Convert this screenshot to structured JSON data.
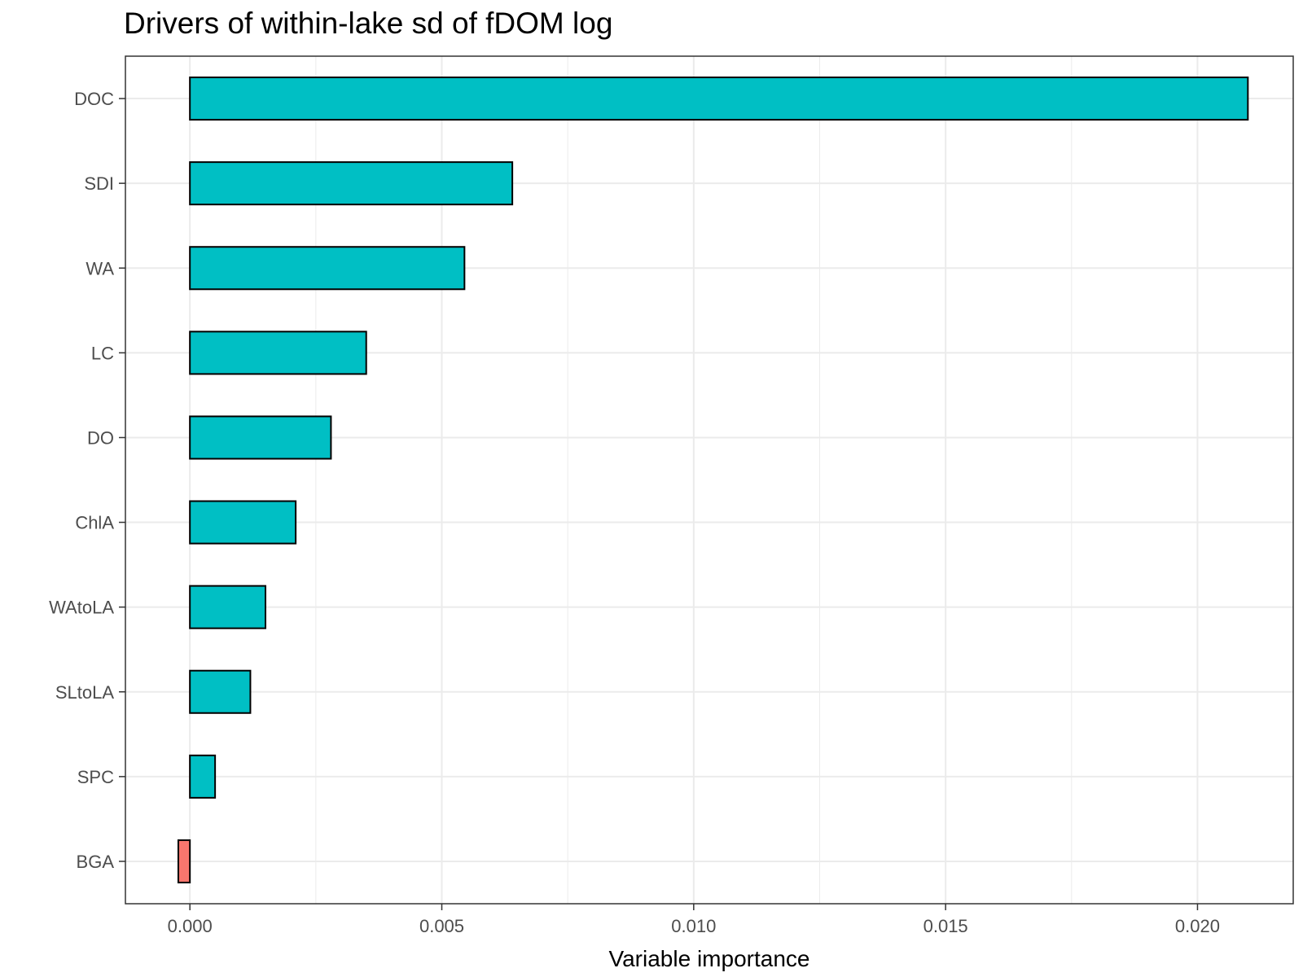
{
  "chart_data": {
    "type": "bar",
    "orientation": "horizontal",
    "title": "Drivers of within-lake sd of fDOM log",
    "xlabel": "Variable importance",
    "ylabel": "",
    "categories": [
      "DOC",
      "SDI",
      "WA",
      "LC",
      "DO",
      "ChlA",
      "WAtoLA",
      "SLtoLA",
      "SPC",
      "BGA"
    ],
    "values": [
      0.021,
      0.0064,
      0.00545,
      0.0035,
      0.0028,
      0.0021,
      0.0015,
      0.0012,
      0.0005,
      -0.00023
    ],
    "xlim": [
      -0.00128,
      0.0219
    ],
    "xticks": [
      0.0,
      0.005,
      0.01,
      0.015,
      0.02
    ],
    "xtick_labels": [
      "0.000",
      "0.005",
      "0.010",
      "0.015",
      "0.020"
    ],
    "colors": {
      "positive": "#00BFC4",
      "negative": "#F8766D",
      "bar_outline": "#000000",
      "grid": "#ebebeb",
      "panel_border": "#333333"
    },
    "grid": true,
    "legend": "none"
  }
}
